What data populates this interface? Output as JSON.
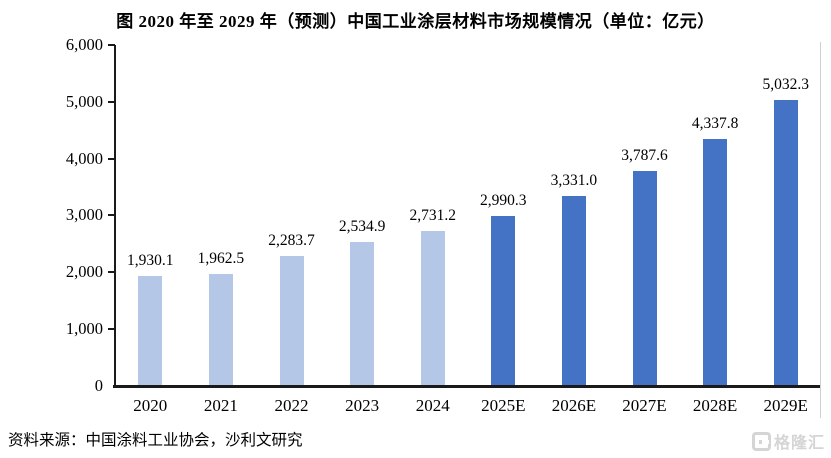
{
  "title": "图  2020 年至 2029 年（预测）中国工业涂层材料市场规模情况（单位：亿元）",
  "source_note": "资料来源：中国涂料工业协会，沙利文研究",
  "watermark": {
    "logo": "gelonghui-logo",
    "text": "格隆汇"
  },
  "colors": {
    "historical_bar": "#b4c7e7",
    "forecast_bar": "#4472c4",
    "axis": "#1a1a1a",
    "text": "#000000",
    "watermark": "#d5d5d5"
  },
  "chart_data": {
    "type": "bar",
    "title": "图  2020 年至 2029 年（预测）中国工业涂层材料市场规模情况（单位：亿元）",
    "unit": "亿元",
    "categories": [
      "2020",
      "2021",
      "2022",
      "2023",
      "2024",
      "2025E",
      "2026E",
      "2027E",
      "2028E",
      "2029E"
    ],
    "values": [
      1930.1,
      1962.5,
      2283.7,
      2534.9,
      2731.2,
      2990.3,
      3331.0,
      3787.6,
      4337.8,
      5032.3
    ],
    "value_labels": [
      "1,930.1",
      "1,962.5",
      "2,283.7",
      "2,534.9",
      "2,731.2",
      "2,990.3",
      "3,331.0",
      "3,787.6",
      "4,337.8",
      "5,032.3"
    ],
    "forecast_start_index": 5,
    "xlabel": "",
    "ylabel": "",
    "ylim": [
      0,
      6000
    ],
    "ytick_interval": 1000,
    "ytick_labels": [
      "0",
      "1,000",
      "2,000",
      "3,000",
      "4,000",
      "5,000",
      "6,000"
    ],
    "grid": false,
    "legend_position": "none",
    "bar_label_position": "above"
  }
}
